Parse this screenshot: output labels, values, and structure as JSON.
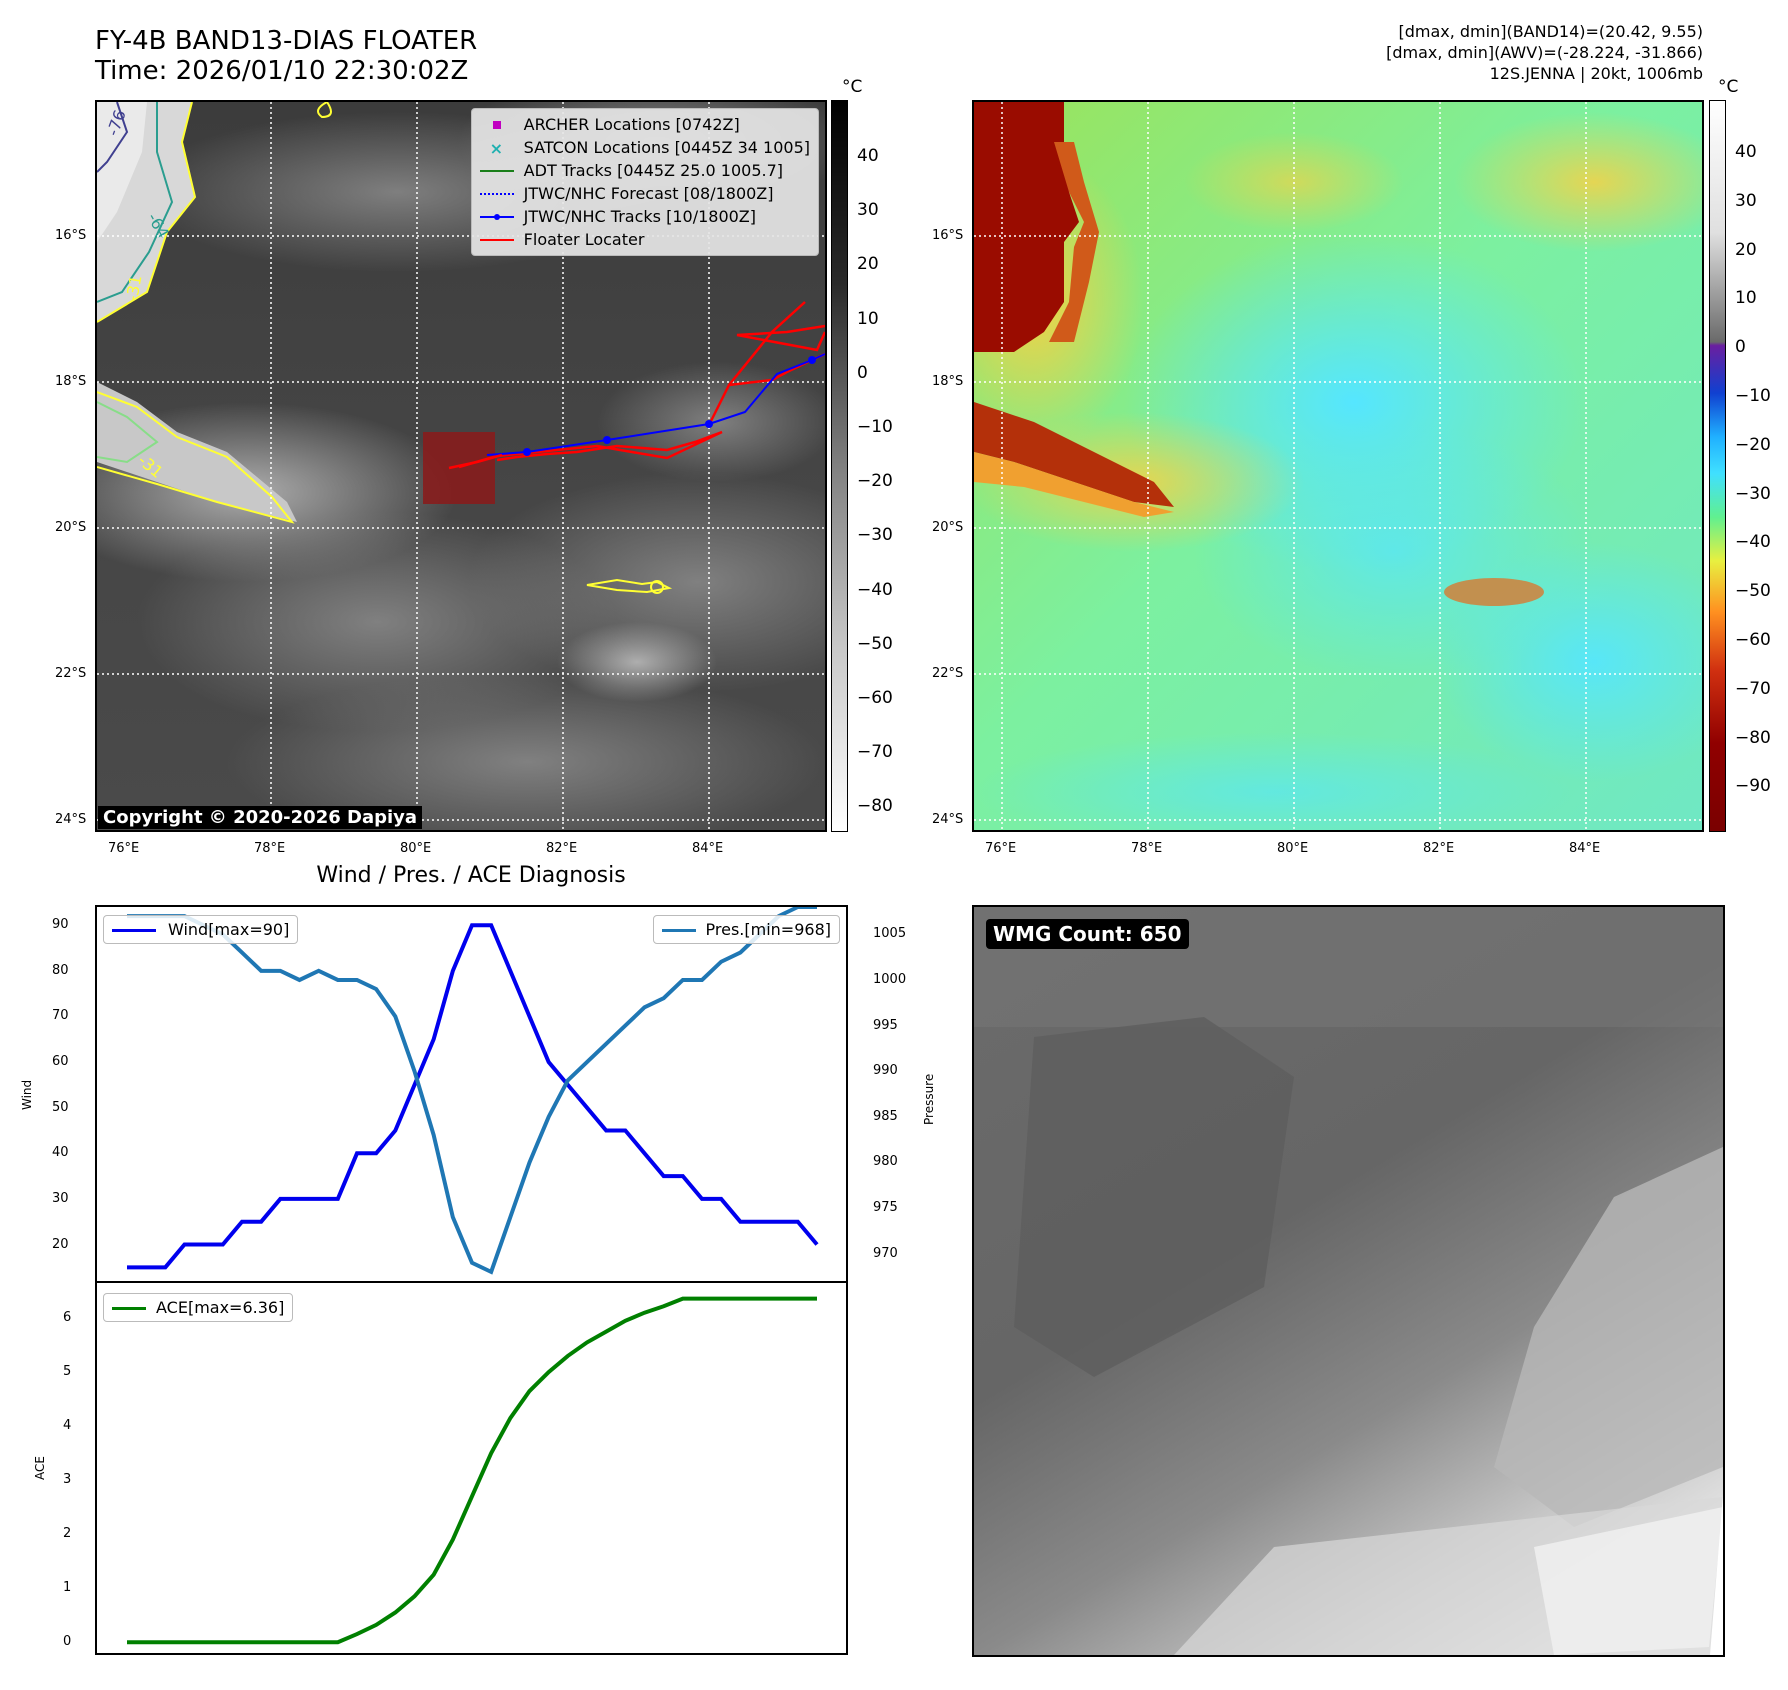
{
  "header": {
    "title_line1": "FY-4B BAND13-DIAS FLOATER",
    "title_line2": "Time: 2026/01/10 22:30:02Z",
    "info_line1": "[dmax, dmin](BAND14)=(20.42, 9.55)",
    "info_line2": "[dmax, dmin](AWV)=(-28.224, -31.866)",
    "info_line3": "12S.JENNA | 20kt, 1006mb"
  },
  "map": {
    "lat_ticks": [
      "16°S",
      "18°S",
      "20°S",
      "22°S",
      "24°S"
    ],
    "lon_ticks": [
      "76°E",
      "78°E",
      "80°E",
      "82°E",
      "84°E"
    ],
    "copyright": "Copyright © 2020-2026 Dapiya",
    "contour_labels": [
      "-76",
      "-64",
      "-31",
      "-31"
    ],
    "legend": [
      {
        "label": "ARCHER Locations [0742Z]",
        "color": "#c000c0",
        "icon": "square-marker"
      },
      {
        "label": "SATCON Locations [0445Z 34 1005]",
        "color": "#20b0b0",
        "icon": "x-marker"
      },
      {
        "label": "ADT Tracks [0445Z 25.0 1005.7]",
        "color": "#1a7f1a",
        "icon": "solid-line"
      },
      {
        "label": "JTWC/NHC Forecast [08/1800Z]",
        "color": "#0000ff",
        "icon": "dotted-line"
      },
      {
        "label": "JTWC/NHC Tracks [10/1800Z]",
        "color": "#0000ff",
        "icon": "line-dot"
      },
      {
        "label": "Floater Locater",
        "color": "#ff0000",
        "icon": "solid-line"
      }
    ],
    "track_colors": {
      "jtwc": "#0000ff",
      "floater": "#ff0000",
      "box": "#8b1a1a"
    }
  },
  "colorbar_gray": {
    "unit": "°C",
    "ticks": [
      "40",
      "30",
      "20",
      "10",
      "0",
      "−10",
      "−20",
      "−30",
      "−40",
      "−50",
      "−60",
      "−70",
      "−80"
    ]
  },
  "colorbar_color": {
    "unit": "°C",
    "ticks": [
      "40",
      "30",
      "20",
      "10",
      "0",
      "−10",
      "−20",
      "−30",
      "−40",
      "−50",
      "−60",
      "−70",
      "−80",
      "−90"
    ]
  },
  "wmg": {
    "label": "WMG Count: 650"
  },
  "chart_data": [
    {
      "type": "line",
      "title": "Wind / Pres. / ACE Diagnosis",
      "ylabel": "Wind",
      "y2label": "Pressure",
      "ylim": [
        12,
        94
      ],
      "y2lim": [
        967,
        1008
      ],
      "y_ticks": [
        "20",
        "30",
        "40",
        "50",
        "60",
        "70",
        "80",
        "90"
      ],
      "y2_ticks": [
        "970",
        "975",
        "980",
        "985",
        "990",
        "995",
        "1000",
        "1005"
      ],
      "x": [
        0,
        1,
        2,
        3,
        4,
        5,
        6,
        7,
        8,
        9,
        10,
        11,
        12,
        13,
        14,
        15,
        16,
        17,
        18,
        19,
        20,
        21,
        22,
        23,
        24,
        25,
        26,
        27,
        28,
        29,
        30,
        31,
        32,
        33,
        34,
        35,
        36
      ],
      "series": [
        {
          "name": "Wind[max=90]",
          "axis": "left",
          "color": "#0000ee",
          "values": [
            15,
            15,
            15,
            20,
            20,
            20,
            25,
            25,
            30,
            30,
            30,
            30,
            40,
            40,
            45,
            55,
            65,
            80,
            90,
            90,
            80,
            70,
            60,
            55,
            50,
            45,
            45,
            40,
            35,
            35,
            30,
            30,
            25,
            25,
            25,
            25,
            20
          ]
        },
        {
          "name": "Pres.[min=968]",
          "axis": "right",
          "color": "#1f77b4",
          "values": [
            1007,
            1007,
            1007,
            1007,
            1006,
            1005,
            1003,
            1001,
            1001,
            1000,
            1001,
            1000,
            1000,
            999,
            996,
            990,
            983,
            974,
            969,
            968,
            974,
            980,
            985,
            989,
            991,
            993,
            995,
            997,
            998,
            1000,
            1000,
            1002,
            1003,
            1005,
            1007,
            1008,
            1008
          ]
        }
      ]
    },
    {
      "type": "line",
      "ylabel": "ACE",
      "ylim": [
        -0.2,
        6.65
      ],
      "y_ticks": [
        "0",
        "1",
        "2",
        "3",
        "4",
        "5",
        "6"
      ],
      "x": [
        0,
        1,
        2,
        3,
        4,
        5,
        6,
        7,
        8,
        9,
        10,
        11,
        12,
        13,
        14,
        15,
        16,
        17,
        18,
        19,
        20,
        21,
        22,
        23,
        24,
        25,
        26,
        27,
        28,
        29,
        30,
        31,
        32,
        33,
        34,
        35,
        36
      ],
      "series": [
        {
          "name": "ACE[max=6.36]",
          "color": "#008000",
          "values": [
            0,
            0,
            0,
            0,
            0,
            0,
            0,
            0,
            0,
            0,
            0,
            0,
            0.15,
            0.32,
            0.55,
            0.85,
            1.25,
            1.9,
            2.7,
            3.5,
            4.15,
            4.65,
            5.0,
            5.3,
            5.55,
            5.75,
            5.95,
            6.1,
            6.22,
            6.36,
            6.36,
            6.36,
            6.36,
            6.36,
            6.36,
            6.36,
            6.36
          ]
        }
      ]
    }
  ]
}
